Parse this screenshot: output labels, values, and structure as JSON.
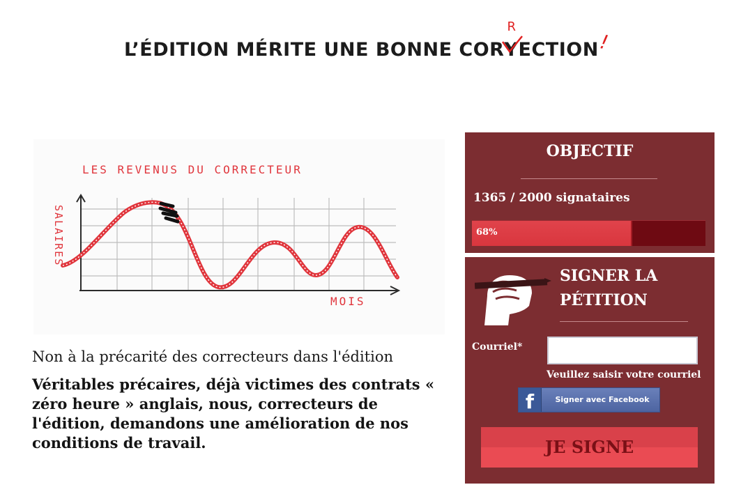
{
  "header": {
    "title_before": "L’ÉDITION MÉRITE UNE BONNE COR",
    "title_struck": "Y",
    "title_after": "ECTION",
    "correction_letter": "R",
    "exclamation": "!"
  },
  "illustration": {
    "title": "LES REVENUS DU CORRECTEUR",
    "ylabel": "SALAIRES",
    "xlabel": "MOIS"
  },
  "petition": {
    "title": "Non à la précarité des correcteurs dans l'édition",
    "description": "Véritables précaires, déjà victimes des contrats « zéro heure » anglais, nous, correcteurs de l'édition, demandons une amélioration de nos conditions de travail."
  },
  "objective": {
    "title": "OBJECTIF",
    "count_text": "1365 / 2000 signataires",
    "progress_percent": 68,
    "progress_label": "68%"
  },
  "sign_form": {
    "title_line1": "SIGNER LA",
    "title_line2": "PÉTITION",
    "email_label": "Courriel*",
    "email_value": "",
    "email_hint": "Veuillez saisir votre courriel",
    "facebook_icon": "f",
    "facebook_label": "Signer avec Facebook",
    "submit_label": "JE SIGNE"
  },
  "colors": {
    "panel": "#7c2d31",
    "accent_red": "#e02020",
    "progress_fill": "#e0434b",
    "progress_track": "#6e0a12",
    "facebook_blue": "#4d64a1"
  }
}
